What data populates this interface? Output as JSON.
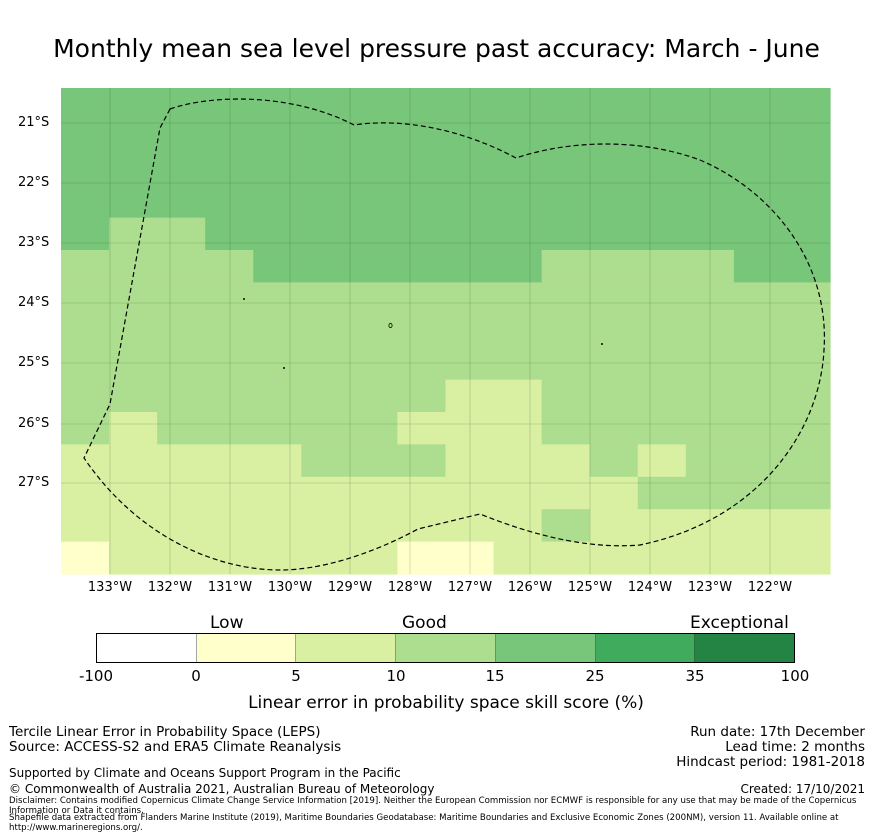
{
  "title": "Monthly mean sea level pressure past accuracy: March - June",
  "map": {
    "lat_labels": [
      "21°S",
      "22°S",
      "23°S",
      "24°S",
      "25°S",
      "26°S",
      "27°S"
    ],
    "lon_labels": [
      "133°W",
      "132°W",
      "131°W",
      "130°W",
      "129°W",
      "128°W",
      "127°W",
      "126°W",
      "125°W",
      "124°W",
      "123°W",
      "122°W"
    ],
    "grid_columns": 16,
    "grid_rows": 15,
    "skill_grid": [
      [
        3,
        3,
        3,
        3,
        3,
        3,
        3,
        3,
        3,
        3,
        3,
        3,
        3,
        3,
        3,
        3
      ],
      [
        3,
        3,
        3,
        3,
        3,
        3,
        3,
        3,
        3,
        3,
        3,
        3,
        3,
        3,
        3,
        3
      ],
      [
        3,
        3,
        3,
        3,
        3,
        3,
        3,
        3,
        3,
        3,
        3,
        3,
        3,
        3,
        3,
        3
      ],
      [
        3,
        3,
        3,
        3,
        3,
        3,
        3,
        3,
        3,
        3,
        3,
        3,
        3,
        3,
        3,
        3
      ],
      [
        3,
        2,
        2,
        3,
        3,
        3,
        3,
        3,
        3,
        3,
        3,
        3,
        3,
        3,
        3,
        3
      ],
      [
        2,
        2,
        2,
        2,
        3,
        3,
        3,
        3,
        3,
        3,
        2,
        2,
        2,
        2,
        3,
        3
      ],
      [
        2,
        2,
        2,
        2,
        2,
        2,
        2,
        2,
        2,
        2,
        2,
        2,
        2,
        2,
        2,
        2
      ],
      [
        2,
        2,
        2,
        2,
        2,
        2,
        2,
        2,
        2,
        2,
        2,
        2,
        2,
        2,
        2,
        2
      ],
      [
        2,
        2,
        2,
        2,
        2,
        2,
        2,
        2,
        2,
        2,
        2,
        2,
        2,
        2,
        2,
        2
      ],
      [
        2,
        2,
        2,
        2,
        2,
        2,
        2,
        2,
        1,
        1,
        2,
        2,
        2,
        2,
        2,
        2
      ],
      [
        2,
        1,
        2,
        2,
        2,
        2,
        2,
        1,
        1,
        1,
        2,
        2,
        2,
        2,
        2,
        2
      ],
      [
        1,
        1,
        1,
        1,
        1,
        2,
        2,
        2,
        1,
        1,
        1,
        2,
        1,
        2,
        2,
        2
      ],
      [
        1,
        1,
        1,
        1,
        1,
        1,
        1,
        1,
        1,
        1,
        1,
        1,
        2,
        2,
        2,
        2
      ],
      [
        1,
        1,
        1,
        1,
        1,
        1,
        1,
        1,
        1,
        1,
        2,
        1,
        1,
        1,
        1,
        1
      ],
      [
        0,
        1,
        1,
        1,
        1,
        1,
        1,
        0,
        0,
        1,
        1,
        1,
        1,
        1,
        1,
        1
      ]
    ]
  },
  "legend": {
    "categories": [
      "Low",
      "Good",
      "Exceptional"
    ],
    "colors": [
      "#ffffff",
      "#ffffcc",
      "#d9f0a3",
      "#addd8e",
      "#78c679",
      "#41ab5d",
      "#238443"
    ],
    "ticks": [
      "-100",
      "0",
      "5",
      "10",
      "15",
      "25",
      "35",
      "100"
    ],
    "label": "Linear error in probability space skill score (%)"
  },
  "info": {
    "line1": "Tercile Linear Error in Probability Space (LEPS)",
    "line2": "Source: ACCESS-S2 and ERA5 Climate Reanalysis",
    "run_date": "Run date: 17th December",
    "lead_time": "Lead time: 2 months",
    "hindcast": "Hindcast period: 1981-2018",
    "supported": "Supported by Climate and Oceans Support Program in the Pacific",
    "copyright": "© Commonwealth of Australia 2021, Australian Bureau of Meteorology",
    "created": "Created: 17/10/2021",
    "disclaimer": "Disclaimer: Contains modified Copernicus Climate Change Service Information [2019]. Neither the European Commission nor ECMWF is responsible for any use that may be made of the Copernicus Information or Data it contains.",
    "shapefile": "Shapefile data extracted from Flanders Marine Institute (2019), Maritime Boundaries Geodatabase: Maritime Boundaries and Exclusive Economic Zones (200NM), version 11. Available online at http://www.marineregions.org/."
  }
}
